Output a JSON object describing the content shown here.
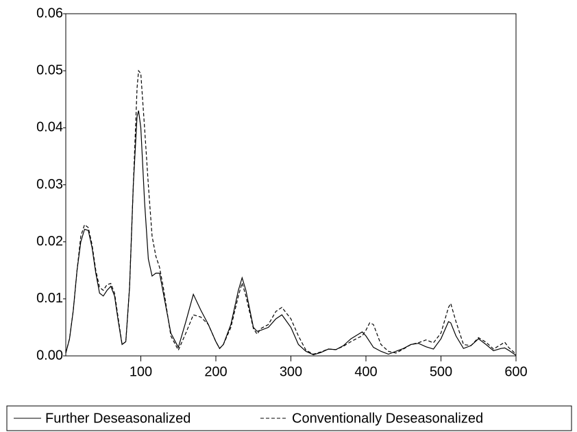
{
  "chart_data": {
    "type": "line",
    "x": [
      0,
      5,
      10,
      15,
      20,
      25,
      30,
      35,
      40,
      45,
      50,
      55,
      60,
      65,
      70,
      75,
      80,
      85,
      90,
      95,
      97,
      100,
      105,
      110,
      115,
      120,
      125,
      130,
      140,
      150,
      160,
      170,
      180,
      190,
      200,
      205,
      210,
      220,
      230,
      235,
      240,
      250,
      255,
      260,
      270,
      280,
      288,
      300,
      310,
      320,
      330,
      340,
      350,
      360,
      370,
      380,
      390,
      395,
      400,
      405,
      410,
      420,
      430,
      440,
      450,
      460,
      470,
      480,
      490,
      500,
      510,
      513,
      520,
      530,
      540,
      550,
      560,
      570,
      580,
      585,
      590,
      600
    ],
    "series": [
      {
        "name": "Further Deseasonalized",
        "color": "#000000",
        "dash": "solid",
        "values": [
          0.0005,
          0.003,
          0.008,
          0.015,
          0.02,
          0.0222,
          0.022,
          0.019,
          0.0145,
          0.011,
          0.0105,
          0.0115,
          0.0122,
          0.0105,
          0.006,
          0.002,
          0.0025,
          0.012,
          0.03,
          0.042,
          0.043,
          0.04,
          0.027,
          0.017,
          0.014,
          0.0145,
          0.0145,
          0.011,
          0.004,
          0.0015,
          0.006,
          0.0108,
          0.008,
          0.0055,
          0.0025,
          0.0013,
          0.002,
          0.0055,
          0.0115,
          0.0137,
          0.0115,
          0.005,
          0.0043,
          0.0045,
          0.005,
          0.0065,
          0.0072,
          0.005,
          0.002,
          0.0008,
          0.0002,
          0.0006,
          0.0012,
          0.0011,
          0.0018,
          0.003,
          0.0038,
          0.0042,
          0.0035,
          0.0025,
          0.0015,
          0.0008,
          0.0003,
          0.0008,
          0.0013,
          0.002,
          0.0022,
          0.0016,
          0.0012,
          0.003,
          0.006,
          0.0058,
          0.0035,
          0.0013,
          0.0018,
          0.003,
          0.002,
          0.0009,
          0.0013,
          0.0014,
          0.001,
          0.0001
        ]
      },
      {
        "name": "Conventionally Deseasonalized",
        "color": "#000000",
        "dash": "dashed",
        "values": [
          0.0005,
          0.003,
          0.008,
          0.015,
          0.021,
          0.023,
          0.0225,
          0.0195,
          0.015,
          0.012,
          0.0115,
          0.0125,
          0.0127,
          0.011,
          0.0065,
          0.002,
          0.0025,
          0.012,
          0.03,
          0.047,
          0.05,
          0.0495,
          0.04,
          0.03,
          0.021,
          0.0175,
          0.0155,
          0.012,
          0.0035,
          0.001,
          0.004,
          0.0072,
          0.0068,
          0.0055,
          0.0025,
          0.0013,
          0.002,
          0.005,
          0.0105,
          0.0128,
          0.0105,
          0.0048,
          0.0038,
          0.0048,
          0.0055,
          0.0078,
          0.0085,
          0.0065,
          0.0035,
          0.001,
          0.0003,
          0.0007,
          0.0012,
          0.0011,
          0.0017,
          0.0025,
          0.0032,
          0.0035,
          0.0045,
          0.0058,
          0.0055,
          0.002,
          0.0008,
          0.0005,
          0.0012,
          0.002,
          0.0023,
          0.0028,
          0.0023,
          0.004,
          0.0085,
          0.0092,
          0.006,
          0.002,
          0.0018,
          0.0032,
          0.0024,
          0.0012,
          0.002,
          0.0024,
          0.0015,
          0.0003
        ]
      }
    ],
    "xlim": [
      0,
      600
    ],
    "xticks": [
      100,
      200,
      300,
      400,
      500,
      600
    ],
    "ylim": [
      0,
      0.06
    ],
    "yticks": [
      {
        "value": 0,
        "label": "0.00"
      },
      0.01,
      0.02,
      0.03,
      0.04,
      0.05,
      0.06
    ],
    "grid": false,
    "legend": "bottom"
  }
}
